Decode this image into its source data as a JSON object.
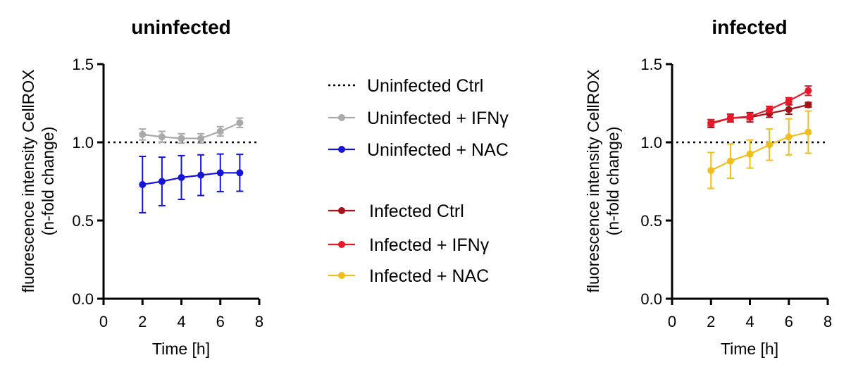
{
  "chart_data": [
    {
      "type": "line",
      "title": "uninfected",
      "xlabel": "Time [h]",
      "ylabel": "fluorescence intensity CellROX",
      "ylabel2": "(n-fold change)",
      "xlim": [
        0,
        8
      ],
      "ylim": [
        0,
        1.5
      ],
      "xticks": [
        "0",
        "2",
        "4",
        "6",
        "8"
      ],
      "yticks": [
        "0.0",
        "0.5",
        "1.0",
        "1.5"
      ],
      "grid": false,
      "reference_line": 1.0,
      "series": [
        {
          "name": "Uninfected + IFNγ",
          "color": "#aaaaaa",
          "x": [
            2,
            3,
            4,
            5,
            6,
            7
          ],
          "y": [
            1.05,
            1.035,
            1.025,
            1.025,
            1.07,
            1.125
          ],
          "err": [
            0.035,
            0.035,
            0.03,
            0.03,
            0.03,
            0.03
          ]
        },
        {
          "name": "Uninfected + NAC",
          "color": "#1515d8",
          "x": [
            2,
            3,
            4,
            5,
            6,
            7
          ],
          "y": [
            0.73,
            0.75,
            0.775,
            0.79,
            0.805,
            0.805
          ],
          "err": [
            0.18,
            0.155,
            0.14,
            0.13,
            0.12,
            0.118
          ]
        }
      ]
    },
    {
      "type": "line",
      "title": "infected",
      "xlabel": "Time [h]",
      "ylabel": "fluorescence intensity CellROX",
      "ylabel2": "(n-fold change)",
      "xlim": [
        0,
        8
      ],
      "ylim": [
        0,
        1.5
      ],
      "xticks": [
        "0",
        "2",
        "4",
        "6",
        "8"
      ],
      "yticks": [
        "0.0",
        "0.5",
        "1.0",
        "1.5"
      ],
      "grid": false,
      "reference_line": 1.0,
      "series": [
        {
          "name": "Infected Ctrl",
          "color": "#a4121a",
          "x": [
            2,
            3,
            4,
            5,
            6,
            7
          ],
          "y": [
            1.12,
            1.155,
            1.16,
            1.185,
            1.21,
            1.24
          ],
          "err": [
            0.025,
            0.025,
            0.03,
            0.025,
            0.03,
            0.015
          ]
        },
        {
          "name": "Infected + IFNγ",
          "color": "#e8182a",
          "x": [
            2,
            3,
            4,
            5,
            6,
            7
          ],
          "y": [
            1.125,
            1.155,
            1.165,
            1.21,
            1.265,
            1.33
          ],
          "err": [
            0.02,
            0.02,
            0.02,
            0.02,
            0.02,
            0.03
          ]
        },
        {
          "name": "Infected + NAC",
          "color": "#f0be1e",
          "x": [
            2,
            3,
            4,
            5,
            6,
            7
          ],
          "y": [
            0.82,
            0.88,
            0.925,
            0.985,
            1.035,
            1.065
          ],
          "err": [
            0.115,
            0.11,
            0.09,
            0.1,
            0.115,
            0.135
          ]
        }
      ]
    }
  ],
  "legend": {
    "items": [
      {
        "label": "Uninfected Ctrl",
        "style": "dotted",
        "color": "#000000"
      },
      {
        "label": "Uninfected + IFNγ",
        "style": "line",
        "color": "#aaaaaa"
      },
      {
        "label": "Uninfected + NAC",
        "style": "line",
        "color": "#1515d8"
      },
      {
        "label": "Infected Ctrl",
        "style": "line",
        "color": "#a4121a"
      },
      {
        "label": "Infected + IFNγ",
        "style": "line",
        "color": "#e8182a"
      },
      {
        "label": "Infected + NAC",
        "style": "line",
        "color": "#f0be1e"
      }
    ]
  }
}
